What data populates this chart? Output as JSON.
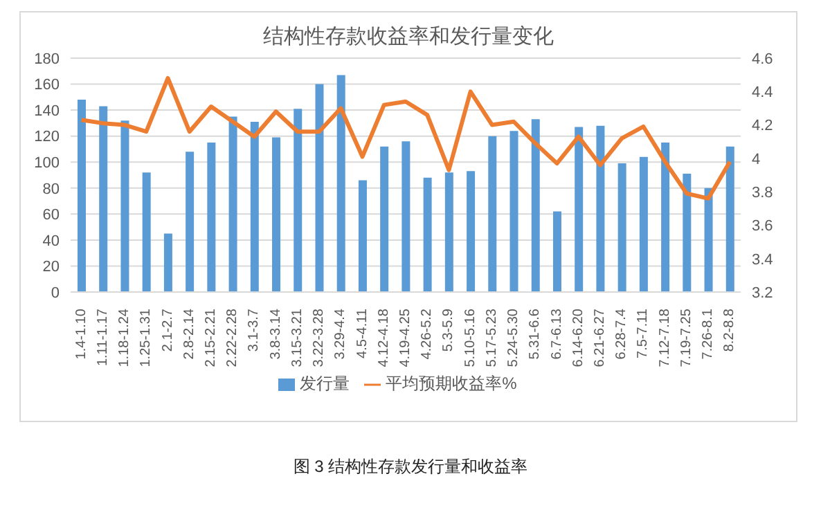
{
  "chart_data": {
    "type": "bar",
    "title": "结构性存款收益率和发行量变化",
    "categories": [
      "1.4-1.10",
      "1.11-1.17",
      "1.18-1.24",
      "1.25-1.31",
      "2.1-2.7",
      "2.8-2.14",
      "2.15-2.21",
      "2.22-2.28",
      "3.1-3.7",
      "3.8-3.14",
      "3.15-3.21",
      "3.22-3.28",
      "3.29-4.4",
      "4.5-4.11",
      "4.12-4.18",
      "4.19-4.25",
      "4.26-5.2",
      "5.3-5.9",
      "5.10-5.16",
      "5.17-5.23",
      "5.24-5.30",
      "5.31-6.6",
      "6.7-6.13",
      "6.14-6.20",
      "6.21-6.27",
      "6.28-7.4",
      "7.5-7.11",
      "7.12-7.18",
      "7.19-7.25",
      "7.26-8.1",
      "8.2-8.8"
    ],
    "series": [
      {
        "name": "发行量",
        "color": "#5b9bd5",
        "values": [
          148,
          143,
          132,
          92,
          45,
          108,
          115,
          135,
          131,
          119,
          141,
          160,
          167,
          86,
          112,
          116,
          88,
          92,
          93,
          120,
          124,
          133,
          62,
          127,
          128,
          99,
          104,
          115,
          91,
          80,
          112
        ]
      },
      {
        "name": "平均预期收益率%",
        "type": "line",
        "axis": "y2",
        "color": "#ed7d31",
        "values": [
          4.23,
          4.21,
          4.2,
          4.16,
          4.48,
          4.16,
          4.31,
          4.22,
          4.13,
          4.28,
          4.16,
          4.16,
          4.3,
          4.01,
          4.32,
          4.34,
          4.26,
          3.93,
          4.4,
          4.2,
          4.22,
          4.09,
          3.97,
          4.13,
          3.96,
          4.12,
          4.19,
          3.98,
          3.79,
          3.76,
          3.98
        ]
      }
    ],
    "ylim": [
      0,
      180
    ],
    "yticks": [
      0,
      20,
      40,
      60,
      80,
      100,
      120,
      140,
      160,
      180
    ],
    "y2lim": [
      3.2,
      4.6
    ],
    "y2ticks": [
      3.2,
      3.4,
      3.6,
      3.8,
      4,
      4.2,
      4.4,
      4.6
    ],
    "grid": "y",
    "legend": "bottom",
    "marker": "none",
    "annotations": [
      "图 3 结构性存款发行量和收益率"
    ]
  }
}
